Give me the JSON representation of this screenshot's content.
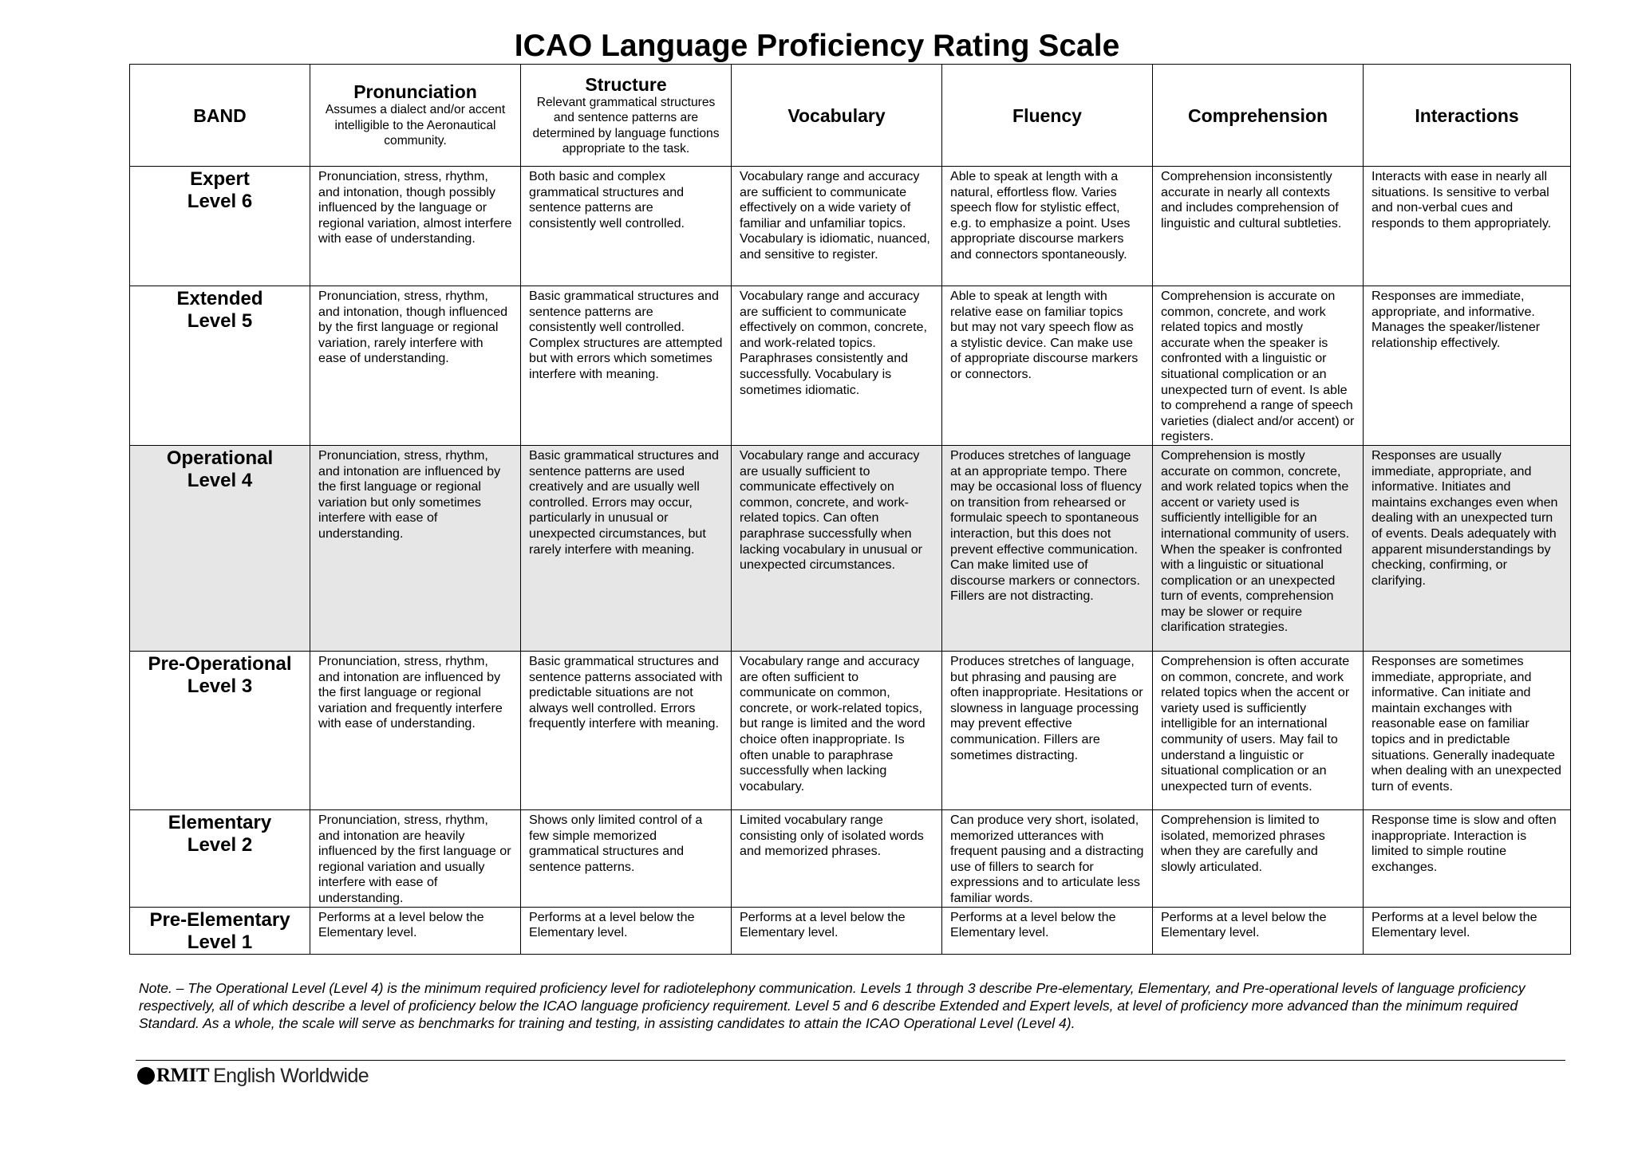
{
  "title": "ICAO Language Proficiency Rating Scale",
  "headers": {
    "band": "BAND",
    "pronunciation": {
      "title": "Pronunciation",
      "sub": "Assumes a dialect and/or accent intelligible to the Aeronautical community."
    },
    "structure": {
      "title": "Structure",
      "sub": "Relevant grammatical structures and sentence patterns are determined by language functions appropriate to the task."
    },
    "vocabulary": "Vocabulary",
    "fluency": "Fluency",
    "comprehension": "Comprehension",
    "interactions": "Interactions"
  },
  "rows": [
    {
      "band": "Expert",
      "level": "Level 6",
      "shaded": false,
      "pronunciation": "Pronunciation, stress, rhythm, and intonation, though possibly influenced by the language or regional variation, almost interfere with ease of understanding.",
      "structure": "Both basic and complex grammatical structures and sentence patterns are consistently well controlled.",
      "vocabulary": "Vocabulary range and accuracy are sufficient to communicate effectively on a wide variety of familiar and unfamiliar topics. Vocabulary is idiomatic, nuanced, and sensitive to register.",
      "fluency": "Able to speak at length with a natural, effortless flow. Varies speech flow for stylistic effect, e.g. to emphasize a point. Uses appropriate discourse markers and connectors spontaneously.",
      "comprehension": "Comprehension inconsistently accurate in nearly all contexts and includes comprehension of linguistic and cultural subtleties.",
      "interactions": "Interacts with ease in nearly all situations. Is sensitive to verbal and non-verbal cues and responds to them appropriately."
    },
    {
      "band": "Extended",
      "level": "Level 5",
      "shaded": false,
      "pronunciation": "Pronunciation, stress, rhythm, and intonation, though influenced by the first language or regional variation, rarely interfere with ease of understanding.",
      "structure": "Basic grammatical structures and sentence patterns are consistently well controlled. Complex structures are attempted but with errors which sometimes interfere with meaning.",
      "vocabulary": "Vocabulary range and accuracy are sufficient to communicate effectively on common, concrete, and work-related topics. Paraphrases consistently and successfully. Vocabulary is sometimes idiomatic.",
      "fluency": "Able to speak at length with relative ease on familiar topics but may not vary speech flow as a stylistic device. Can make use of appropriate discourse markers or connectors.",
      "comprehension": "Comprehension is accurate on common, concrete, and work related topics and mostly accurate when the speaker is confronted with a linguistic or situational complication or an unexpected turn of event. Is able to comprehend a range of speech varieties (dialect and/or accent) or registers.",
      "interactions": "Responses are immediate, appropriate, and informative. Manages the speaker/listener relationship effectively."
    },
    {
      "band": "Operational",
      "level": "Level 4",
      "shaded": true,
      "pronunciation": "Pronunciation, stress, rhythm, and intonation are influenced by the first language or regional variation but only sometimes interfere with ease of understanding.",
      "structure": "Basic grammatical structures and sentence patterns are used creatively and are usually well controlled. Errors may occur, particularly in unusual or unexpected circumstances, but rarely interfere with meaning.",
      "vocabulary": "Vocabulary range and accuracy are usually sufficient to communicate effectively on common, concrete, and work-related topics. Can often paraphrase successfully when lacking vocabulary in unusual or unexpected circumstances.",
      "fluency": "Produces stretches of language at an appropriate tempo. There may be occasional loss of fluency on transition from rehearsed or formulaic speech to spontaneous interaction, but this does not prevent effective communication. Can make limited use of discourse markers or connectors. Fillers are not distracting.",
      "comprehension": "Comprehension is mostly accurate on common, concrete, and work related topics when the accent or variety used is sufficiently intelligible for an international community of users. When the speaker is confronted with a linguistic or situational complication or an unexpected turn of events, comprehension may be slower or require clarification strategies.",
      "interactions": "Responses are usually immediate, appropriate, and informative. Initiates and maintains exchanges even when dealing with an unexpected turn of events. Deals adequately with apparent misunderstandings by checking, confirming, or clarifying."
    },
    {
      "band": "Pre-Operational",
      "level": "Level 3",
      "shaded": false,
      "pronunciation": "Pronunciation, stress, rhythm, and intonation are influenced by the first language or regional variation and frequently interfere with ease of understanding.",
      "structure": "Basic grammatical structures and sentence patterns associated with predictable situations are not always well controlled. Errors frequently interfere with meaning.",
      "vocabulary": "Vocabulary range and accuracy are often sufficient to communicate on common, concrete, or work-related topics, but range is limited and the word choice often inappropriate. Is often unable to paraphrase successfully when lacking vocabulary.",
      "fluency": "Produces stretches of language, but phrasing and pausing are often inappropriate. Hesitations or slowness in language processing may prevent effective communication. Fillers are sometimes distracting.",
      "comprehension": "Comprehension is often accurate on common, concrete, and work related topics when the accent or variety used is sufficiently intelligible for an international community of users. May fail to understand a linguistic or situational complication or an unexpected turn of events.",
      "interactions": "Responses are sometimes immediate, appropriate, and informative. Can initiate and maintain exchanges with reasonable ease on familiar topics and in predictable situations. Generally inadequate when dealing with an unexpected turn of events."
    },
    {
      "band": "Elementary",
      "level": "Level 2",
      "shaded": false,
      "pronunciation": "Pronunciation, stress, rhythm, and intonation are heavily influenced by the first language or regional variation and usually interfere with ease of understanding.",
      "structure": "Shows only limited control of a few simple memorized grammatical structures and sentence patterns.",
      "vocabulary": "Limited vocabulary range consisting only of isolated words and memorized phrases.",
      "fluency": "Can produce very short, isolated, memorized utterances with frequent pausing and a distracting use of fillers to search for expressions and to articulate less familiar words.",
      "comprehension": "Comprehension is limited to isolated, memorized phrases when they are carefully and slowly articulated.",
      "interactions": "Response time is slow and often inappropriate. Interaction is limited to simple routine exchanges."
    },
    {
      "band": "Pre-Elementary",
      "level": "Level 1",
      "shaded": false,
      "pronunciation": "Performs at a level below the Elementary level.",
      "structure": "Performs at a level below the Elementary level.",
      "vocabulary": "Performs at a level below the Elementary level.",
      "fluency": "Performs at a level below the Elementary level.",
      "comprehension": "Performs at a level below the Elementary level.",
      "interactions": "Performs at a level below the Elementary level."
    }
  ],
  "note": "Note. – The Operational Level (Level 4) is the minimum required proficiency level for radiotelephony communication. Levels 1 through 3 describe Pre-elementary, Elementary, and Pre-operational levels of language proficiency respectively, all of which describe a level of proficiency below the ICAO language proficiency requirement. Level 5 and 6 describe Extended and Expert levels, at level of proficiency more advanced than the minimum required Standard. As a whole, the scale will serve as benchmarks for training and testing, in assisting candidates to attain the ICAO Operational Level (Level 4).",
  "footer": {
    "logo_strong": "RMIT",
    "logo_text": "English Worldwide",
    "logo_icon": "rmit-mark-icon"
  }
}
